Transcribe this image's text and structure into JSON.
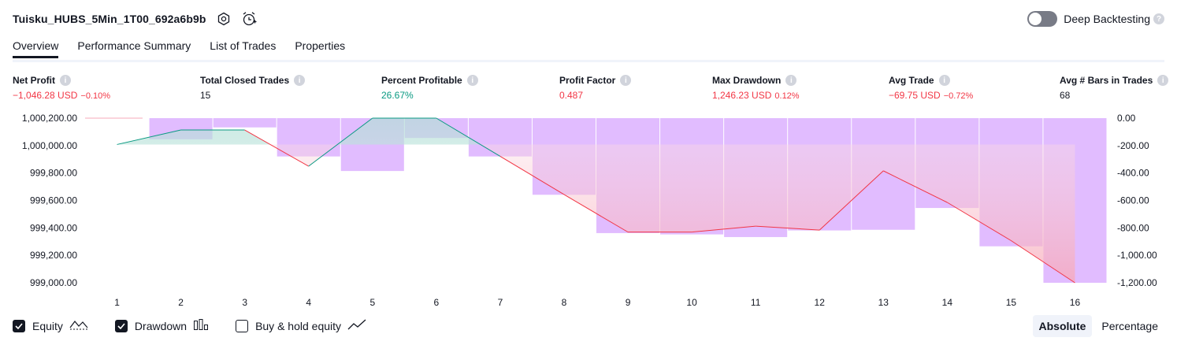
{
  "header": {
    "strategy_name": "Tuisku_HUBS_5Min_1T00_692a6b9b",
    "icons": [
      "settings-icon",
      "alarm-add-icon"
    ],
    "deep_backtesting_label": "Deep Backtesting",
    "deep_backtesting_on": false
  },
  "tabs": [
    {
      "label": "Overview",
      "active": true
    },
    {
      "label": "Performance Summary",
      "active": false
    },
    {
      "label": "List of Trades",
      "active": false
    },
    {
      "label": "Properties",
      "active": false
    }
  ],
  "metrics": [
    {
      "label": "Net Profit",
      "value": "−1,046.28 USD",
      "pct": "−0.10%",
      "color": "red"
    },
    {
      "label": "Total Closed Trades",
      "value": "15",
      "pct": "",
      "color": "dark"
    },
    {
      "label": "Percent Profitable",
      "value": "26.67%",
      "pct": "",
      "color": "green"
    },
    {
      "label": "Profit Factor",
      "value": "0.487",
      "pct": "",
      "color": "red"
    },
    {
      "label": "Max Drawdown",
      "value": "1,246.23 USD",
      "pct": "0.12%",
      "color": "red"
    },
    {
      "label": "Avg Trade",
      "value": "−69.75 USD",
      "pct": "−0.72%",
      "color": "red"
    },
    {
      "label": "Avg # Bars in Trades",
      "value": "68",
      "pct": "",
      "color": "dark"
    }
  ],
  "chart_data": {
    "type": "line",
    "x": [
      1,
      2,
      3,
      4,
      5,
      6,
      7,
      8,
      9,
      10,
      11,
      12,
      13,
      14,
      15,
      16
    ],
    "series": [
      {
        "name": "Equity",
        "axis": "left",
        "values": [
          1000000,
          1000110,
          1000110,
          999835,
          1000200,
          1000200,
          999910,
          999620,
          999335,
          999335,
          999380,
          999350,
          999800,
          999560,
          999270,
          998950
        ]
      },
      {
        "name": "Drawdown",
        "axis": "right",
        "type": "bar",
        "values": [
          null,
          -160,
          -70,
          -290,
          -400,
          -150,
          -290,
          -580,
          -870,
          -880,
          -900,
          -850,
          -845,
          -680,
          -970,
          -1246
        ]
      }
    ],
    "left_axis": {
      "ticks": [
        "1,000,200.00",
        "1,000,000.00",
        "999,800.00",
        "999,600.00",
        "999,400.00",
        "999,200.00",
        "999,000.00"
      ],
      "range": [
        998950,
        1000200
      ]
    },
    "right_axis": {
      "ticks": [
        "0.00",
        "-200.00",
        "-400.00",
        "-600.00",
        "-800.00",
        "-1,000.00",
        "-1,200.00"
      ],
      "range": [
        -1246,
        0
      ]
    },
    "x_ticks": [
      "1",
      "2",
      "3",
      "4",
      "5",
      "6",
      "7",
      "8",
      "9",
      "10",
      "11",
      "12",
      "13",
      "14",
      "15",
      "16"
    ],
    "colors": {
      "equity_up": "#089981",
      "equity_down": "#f23645",
      "drawdown_bar": "#ce93ff",
      "fill_green": "#b2dfd6",
      "fill_red": "#f7a8b8"
    }
  },
  "legend": [
    {
      "label": "Equity",
      "checked": true,
      "icon": "equity-line-icon"
    },
    {
      "label": "Drawdown",
      "checked": true,
      "icon": "bar-chart-icon"
    },
    {
      "label": "Buy & hold equity",
      "checked": false,
      "icon": "trend-line-icon"
    }
  ],
  "mode": {
    "absolute": "Absolute",
    "percentage": "Percentage",
    "selected": "Absolute"
  }
}
